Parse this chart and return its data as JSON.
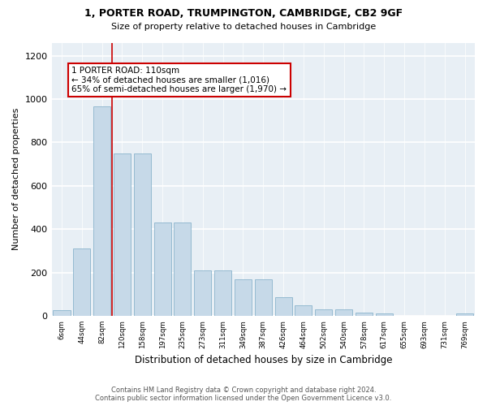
{
  "title1": "1, PORTER ROAD, TRUMPINGTON, CAMBRIDGE, CB2 9GF",
  "title2": "Size of property relative to detached houses in Cambridge",
  "xlabel": "Distribution of detached houses by size in Cambridge",
  "ylabel": "Number of detached properties",
  "bin_labels": [
    "6sqm",
    "44sqm",
    "82sqm",
    "120sqm",
    "158sqm",
    "197sqm",
    "235sqm",
    "273sqm",
    "311sqm",
    "349sqm",
    "387sqm",
    "426sqm",
    "464sqm",
    "502sqm",
    "540sqm",
    "578sqm",
    "617sqm",
    "655sqm",
    "693sqm",
    "731sqm",
    "769sqm"
  ],
  "bar_values": [
    25,
    310,
    965,
    750,
    750,
    430,
    430,
    210,
    210,
    170,
    170,
    85,
    50,
    30,
    30,
    15,
    10,
    0,
    0,
    0,
    10
  ],
  "bar_color": "#c6d9e8",
  "bar_edgecolor": "#8ab4cc",
  "vline_x": 2.5,
  "vline_color": "#cc0000",
  "annotation_text": "1 PORTER ROAD: 110sqm\n← 34% of detached houses are smaller (1,016)\n65% of semi-detached houses are larger (1,970) →",
  "annotation_box_color": "#ffffff",
  "annotation_box_edgecolor": "#cc0000",
  "ylim": [
    0,
    1260
  ],
  "yticks": [
    0,
    200,
    400,
    600,
    800,
    1000,
    1200
  ],
  "footer1": "Contains HM Land Registry data © Crown copyright and database right 2024.",
  "footer2": "Contains public sector information licensed under the Open Government Licence v3.0.",
  "fig_bg_color": "#ffffff",
  "plot_bg_color": "#e8eff5"
}
